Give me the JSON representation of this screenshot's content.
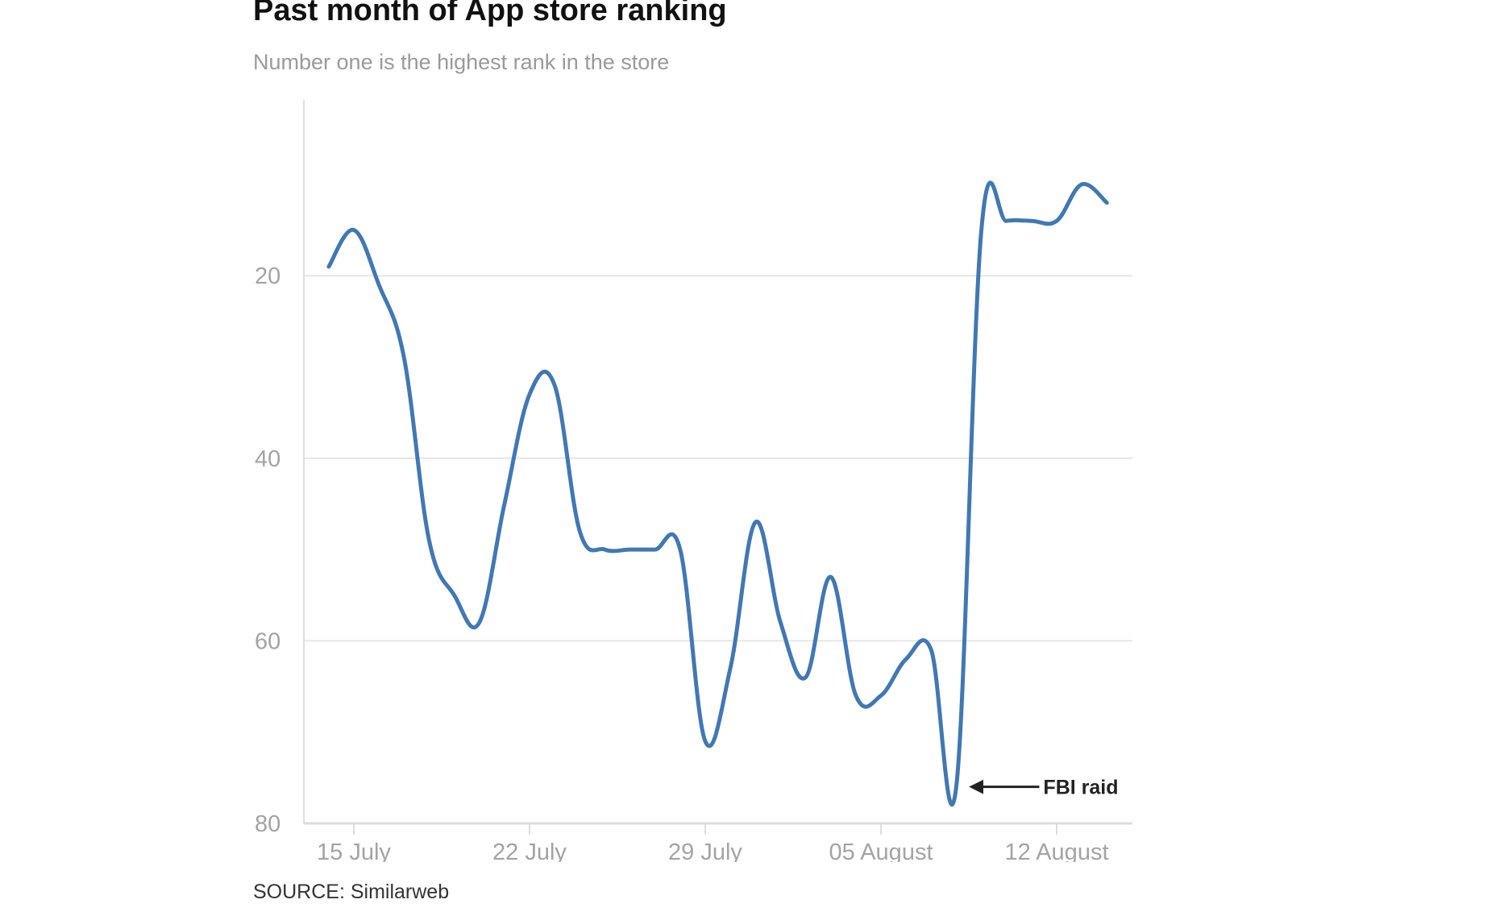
{
  "title": "Past month of App store ranking",
  "subtitle": "Number one is the highest rank in the store",
  "source": "SOURCE: Similarweb",
  "colors": {
    "line": "#4178b4",
    "grid": "#e6e6e6",
    "axis": "#dddddd",
    "tick_text": "#a3a3a3",
    "annotation": "#222222"
  },
  "chart_data": {
    "type": "line",
    "title": "Past month of App store ranking",
    "subtitle": "Number one is the highest rank in the store",
    "xlabel": "",
    "ylabel": "",
    "y_inverted": true,
    "ylim": [
      80,
      1
    ],
    "yticks": [
      20,
      40,
      60,
      80
    ],
    "ytick_labels": [
      "20",
      "40",
      "60",
      "80"
    ],
    "xticks": [
      "2022-07-15",
      "2022-07-22",
      "2022-07-29",
      "2022-08-05",
      "2022-08-12"
    ],
    "xtick_labels": [
      "15 July",
      "22 July",
      "29 July",
      "05 August",
      "12 August"
    ],
    "grid": true,
    "legend": "none",
    "series": [
      {
        "x": [
          "2022-07-14",
          "2022-07-15",
          "2022-07-16",
          "2022-07-17",
          "2022-07-18",
          "2022-07-19",
          "2022-07-20",
          "2022-07-21",
          "2022-07-22",
          "2022-07-23",
          "2022-07-24",
          "2022-07-25",
          "2022-07-26",
          "2022-07-27",
          "2022-07-28",
          "2022-07-29",
          "2022-07-30",
          "2022-07-31",
          "2022-08-01",
          "2022-08-02",
          "2022-08-03",
          "2022-08-04",
          "2022-08-05",
          "2022-08-06",
          "2022-08-07",
          "2022-08-08",
          "2022-08-09",
          "2022-08-10",
          "2022-08-11",
          "2022-08-12",
          "2022-08-13",
          "2022-08-14"
        ],
        "values": [
          19,
          15,
          21,
          29,
          49,
          55,
          58,
          45,
          33,
          32,
          48,
          50,
          50,
          50,
          50,
          71,
          63,
          47,
          58,
          64,
          53,
          66,
          66,
          62,
          61,
          76,
          15,
          14,
          14,
          14,
          10,
          12
        ]
      }
    ],
    "annotations": [
      {
        "text": "FBI raid",
        "x": "2022-08-08",
        "y": 76,
        "arrow": "left"
      }
    ]
  }
}
